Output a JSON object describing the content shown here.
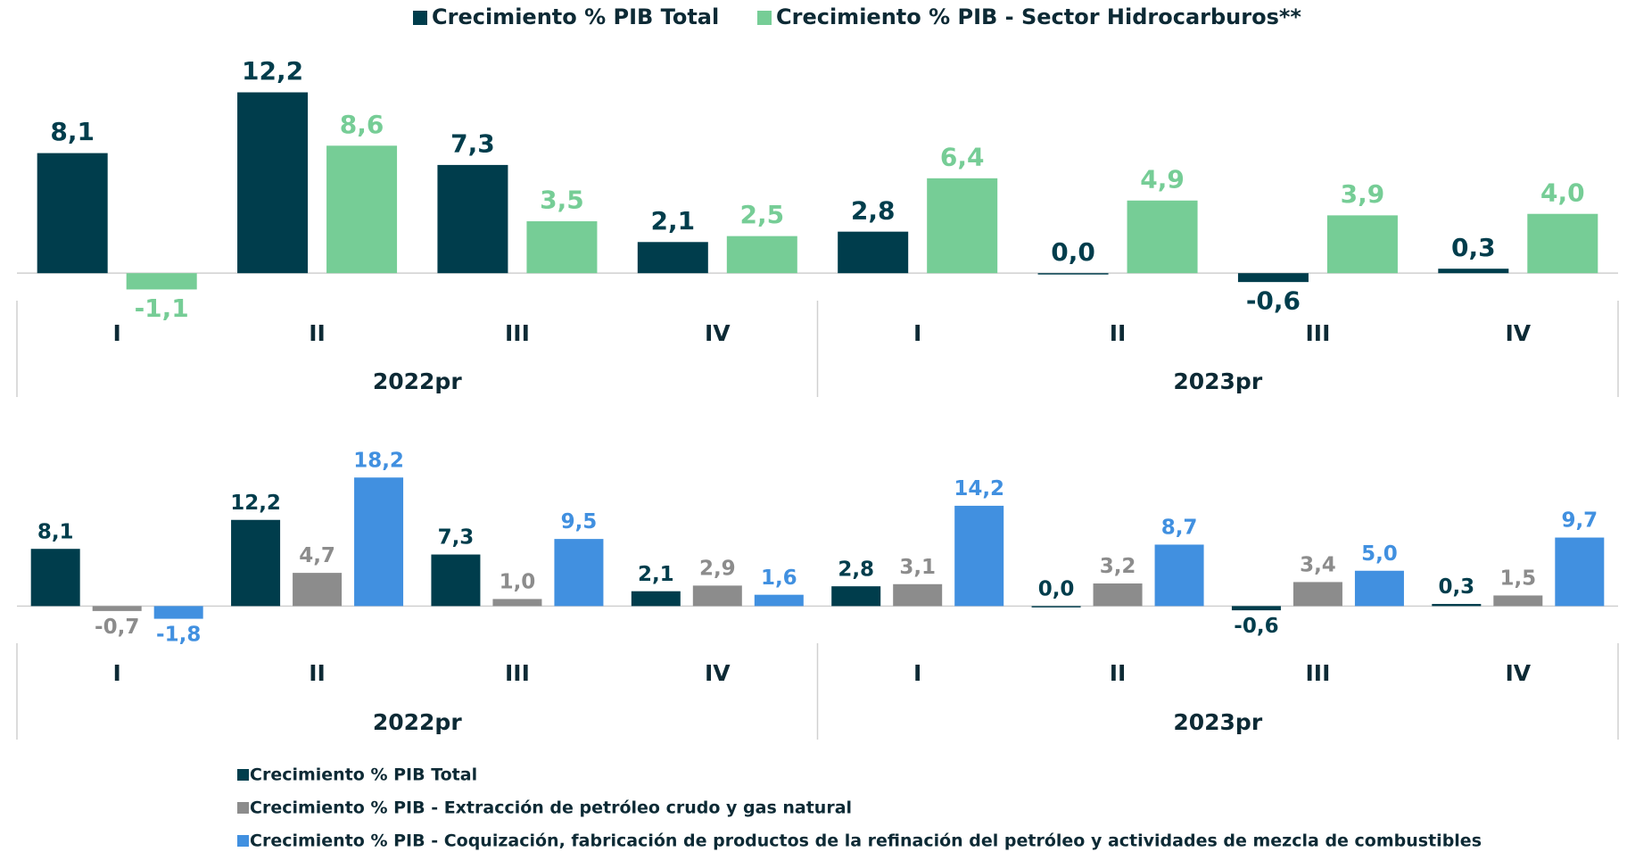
{
  "chart_data": [
    {
      "type": "bar",
      "categories": [
        "I",
        "II",
        "III",
        "IV",
        "I",
        "II",
        "III",
        "IV"
      ],
      "groups": [
        "2022pr",
        "2023pr"
      ],
      "ylim": [
        -2,
        14
      ],
      "legend": "top",
      "series": [
        {
          "name": "Crecimiento % PIB Total",
          "color": "#003d4c",
          "values": [
            8.1,
            12.2,
            7.3,
            2.1,
            2.8,
            0.0,
            -0.6,
            0.3
          ],
          "value_labels": [
            "8,1",
            "12,2",
            "7,3",
            "2,1",
            "2,8",
            "0,0",
            "-0,6",
            "0,3"
          ]
        },
        {
          "name": "Crecimiento % PIB - Sector Hidrocarburos**",
          "color": "#76cd96",
          "values": [
            -1.1,
            8.6,
            3.5,
            2.5,
            6.4,
            4.9,
            3.9,
            4.0
          ],
          "value_labels": [
            "-1,1",
            "8,6",
            "3,5",
            "2,5",
            "6,4",
            "4,9",
            "3,9",
            "4,0"
          ]
        }
      ]
    },
    {
      "type": "bar",
      "categories": [
        "I",
        "II",
        "III",
        "IV",
        "I",
        "II",
        "III",
        "IV"
      ],
      "groups": [
        "2022pr",
        "2023pr"
      ],
      "ylim": [
        -4,
        20
      ],
      "legend": "bottom-left",
      "series": [
        {
          "name": "Crecimiento % PIB Total",
          "color": "#003d4c",
          "values": [
            8.1,
            12.2,
            7.3,
            2.1,
            2.8,
            0.0,
            -0.6,
            0.3
          ],
          "value_labels": [
            "8,1",
            "12,2",
            "7,3",
            "2,1",
            "2,8",
            "0,0",
            "-0,6",
            "0,3"
          ]
        },
        {
          "name": "Crecimiento % PIB - Extracción de petróleo crudo y gas natural",
          "color": "#8c8c8c",
          "values": [
            -0.7,
            4.7,
            1.0,
            2.9,
            3.1,
            3.2,
            3.4,
            1.5
          ],
          "value_labels": [
            "-0,7",
            "4,7",
            "1,0",
            "2,9",
            "3,1",
            "3,2",
            "3,4",
            "1,5"
          ]
        },
        {
          "name": "Crecimiento % PIB - Coquización, fabricación de productos de la refinación del petróleo y actividades de mezcla de combustibles",
          "color": "#4190e0",
          "values": [
            -1.8,
            18.2,
            9.5,
            1.6,
            14.2,
            8.7,
            5.0,
            9.7
          ],
          "value_labels": [
            "-1,8",
            "18,2",
            "9,5",
            "1,6",
            "14,2",
            "8,7",
            "5,0",
            "9,7"
          ]
        }
      ]
    }
  ]
}
